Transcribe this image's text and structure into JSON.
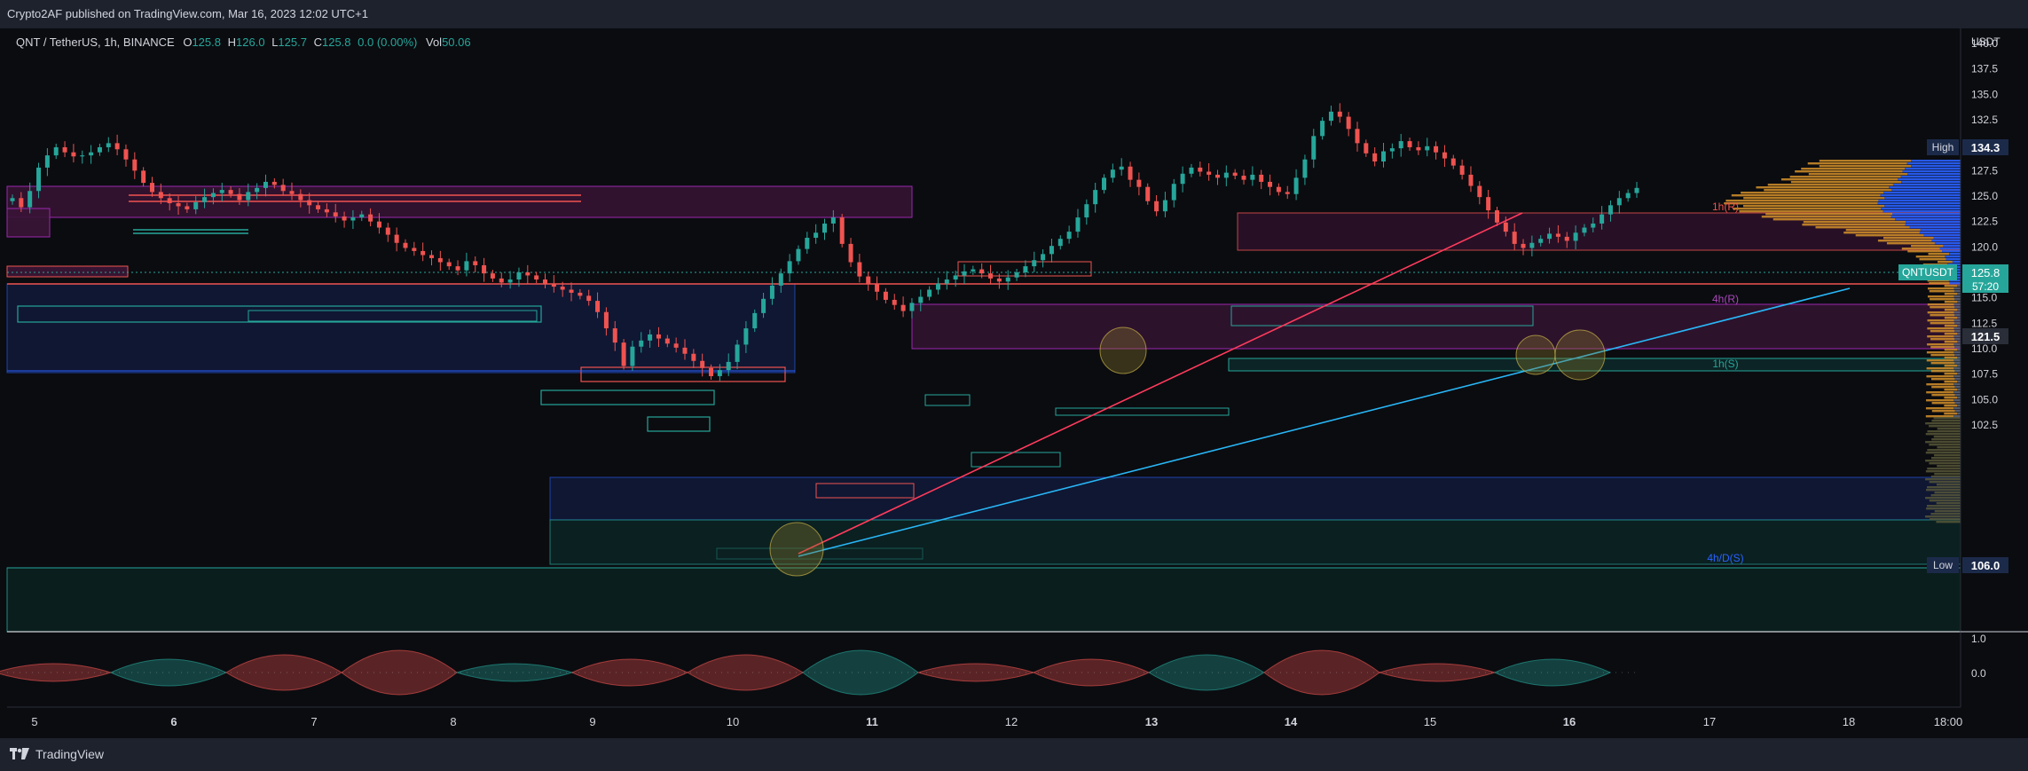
{
  "header": {
    "published_text": "Crypto2AF published on TradingView.com, Mar 16, 2023 12:02 UTC+1"
  },
  "legend": {
    "symbol": "QNT / TetherUS, 1h, BINANCE",
    "open_label": "O",
    "open": "125.8",
    "high_label": "H",
    "high": "126.0",
    "low_label": "L",
    "low": "125.7",
    "close_label": "C",
    "close": "125.8",
    "change": "0.0 (0.00%)",
    "vol_label": "Vol",
    "vol": "50.06"
  },
  "price_axis": {
    "currency": "USDT",
    "ticks": [
      "140.0",
      "137.5",
      "135.0",
      "132.5",
      "130.0",
      "127.5",
      "125.0",
      "122.5",
      "120.0",
      "117.5",
      "115.0",
      "112.5",
      "110.0",
      "107.5",
      "105.0",
      "102.5"
    ],
    "high_label": "High",
    "high_value": "134.3",
    "low_label": "Low",
    "low_value": "106.0",
    "symbol_tag": "QNTUSDT",
    "last_price": "125.8",
    "countdown": "57:20",
    "level_tag": "121.5"
  },
  "oscillator_axis": {
    "ticks": [
      "1.0",
      "0.0"
    ]
  },
  "time_axis": {
    "labels": [
      "5",
      "6",
      "7",
      "8",
      "9",
      "10",
      "11",
      "12",
      "13",
      "14",
      "15",
      "16",
      "17",
      "18",
      "18:00"
    ]
  },
  "zone_labels": {
    "r1h": "1h(R)",
    "r4h": "4h(R)",
    "s1h": "1h(S)",
    "s4hd": "4h/D(S)"
  },
  "footer": {
    "brand": "TradingView"
  },
  "colors": {
    "up": "#26a69a",
    "down": "#ef5350",
    "bg": "#0b0c10",
    "panel": "#1e222d",
    "resistance_zone": "#4a1942",
    "support_blue": "#1a2a5e",
    "trendline_red": "#ff3b5c",
    "trendline_cyan": "#29b6f6",
    "volume_profile_orange": "#d4912a",
    "volume_profile_blue": "#2962ff"
  },
  "chart_data": {
    "type": "candlestick",
    "symbol": "QNT / TetherUS",
    "interval": "1h",
    "exchange": "BINANCE",
    "ylim": [
      101.0,
      142.0
    ],
    "x_labels": [
      "5",
      "6",
      "7",
      "8",
      "9",
      "10",
      "11",
      "12",
      "13",
      "14",
      "15",
      "16",
      "17",
      "18",
      "18:00"
    ],
    "high": 134.3,
    "low": 106.0,
    "last": 125.8,
    "closes": [
      124.8,
      123.9,
      125.5,
      127.8,
      129.0,
      129.8,
      129.3,
      128.9,
      129.0,
      129.3,
      129.8,
      130.2,
      129.6,
      128.6,
      127.5,
      126.3,
      125.4,
      124.8,
      124.3,
      124.0,
      123.7,
      124.4,
      124.9,
      125.3,
      125.6,
      125.2,
      124.6,
      125.4,
      125.8,
      126.4,
      126.1,
      125.5,
      125.2,
      124.6,
      124.1,
      123.7,
      123.4,
      123.0,
      122.6,
      122.9,
      123.2,
      122.5,
      121.9,
      121.2,
      120.4,
      119.9,
      119.6,
      119.2,
      118.9,
      118.5,
      118.1,
      117.7,
      118.6,
      118.2,
      117.4,
      116.9,
      116.5,
      116.8,
      117.5,
      117.2,
      116.8,
      116.4,
      116.1,
      115.8,
      115.5,
      115.2,
      114.7,
      113.6,
      112.0,
      110.6,
      108.3,
      110.2,
      110.8,
      111.4,
      111.0,
      110.5,
      110.1,
      109.5,
      108.8,
      108.1,
      107.3,
      107.9,
      108.7,
      110.4,
      112.0,
      113.5,
      114.9,
      116.2,
      117.4,
      118.6,
      119.8,
      120.9,
      121.4,
      122.3,
      122.9,
      120.3,
      118.5,
      117.1,
      116.4,
      115.6,
      114.8,
      114.3,
      113.7,
      114.5,
      115.1,
      115.8,
      116.4,
      116.8,
      117.2,
      117.6,
      117.8,
      117.4,
      116.9,
      116.6,
      117.0,
      117.5,
      118.1,
      118.7,
      119.3,
      120.1,
      120.8,
      121.5,
      122.9,
      124.2,
      125.6,
      126.8,
      127.6,
      127.9,
      126.6,
      125.9,
      124.5,
      123.5,
      124.6,
      126.2,
      127.2,
      127.8,
      127.4,
      127.1,
      126.8,
      127.3,
      127.0,
      126.6,
      127.1,
      126.4,
      125.9,
      125.4,
      125.2,
      126.8,
      128.6,
      130.9,
      132.4,
      133.3,
      132.8,
      131.6,
      130.2,
      129.2,
      128.4,
      129.4,
      129.7,
      130.4,
      129.8,
      129.5,
      129.9,
      129.3,
      128.7,
      128.0,
      127.1,
      126.0,
      124.9,
      123.6,
      122.4,
      121.5,
      120.3,
      119.9,
      120.4,
      120.8,
      121.3,
      121.0,
      120.6,
      121.4,
      121.9,
      122.3,
      123.2,
      124.1,
      124.8,
      125.3,
      125.8
    ]
  }
}
